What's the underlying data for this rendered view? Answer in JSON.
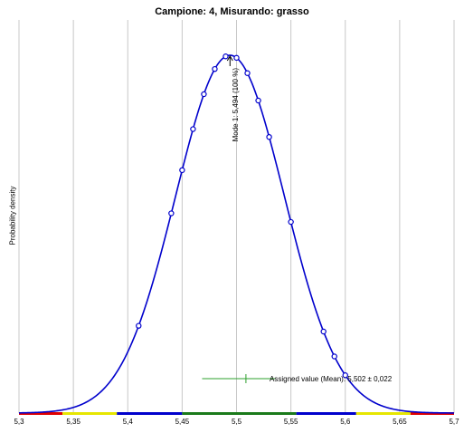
{
  "chart_data": {
    "type": "line",
    "title": "Campione: 4, Misurando: grasso",
    "ylabel": "Probability density",
    "xlabel": "",
    "xlim": [
      5.3,
      5.7
    ],
    "x_ticks": [
      "5,3",
      "5,35",
      "5,4",
      "5,45",
      "5,5",
      "5,55",
      "5,6",
      "5,65",
      "5,7"
    ],
    "grid": "vertical",
    "curve": {
      "distribution": "normal",
      "mean": 5.494,
      "sd": 0.05,
      "color": "#0000cc"
    },
    "points_x": [
      5.41,
      5.44,
      5.45,
      5.46,
      5.47,
      5.48,
      5.49,
      5.5,
      5.51,
      5.52,
      5.53,
      5.55,
      5.58,
      5.59,
      5.6
    ],
    "mode_annotation": "Mode 1: 5,494  (100 %)",
    "assigned_value": {
      "label": "Assigned value (Mean): 5,502 ± 0,022",
      "mean": 5.502,
      "uncertainty": 0.022,
      "color": "#2ca02c"
    },
    "zone_bar": [
      {
        "from": 5.3,
        "to": 5.34,
        "color": "#e00000"
      },
      {
        "from": 5.34,
        "to": 5.39,
        "color": "#e6e600"
      },
      {
        "from": 5.39,
        "to": 5.45,
        "color": "#0000cc"
      },
      {
        "from": 5.45,
        "to": 5.555,
        "color": "#1a7a1a"
      },
      {
        "from": 5.555,
        "to": 5.61,
        "color": "#0000cc"
      },
      {
        "from": 5.61,
        "to": 5.66,
        "color": "#e6e600"
      },
      {
        "from": 5.66,
        "to": 5.7,
        "color": "#e00000"
      }
    ]
  }
}
